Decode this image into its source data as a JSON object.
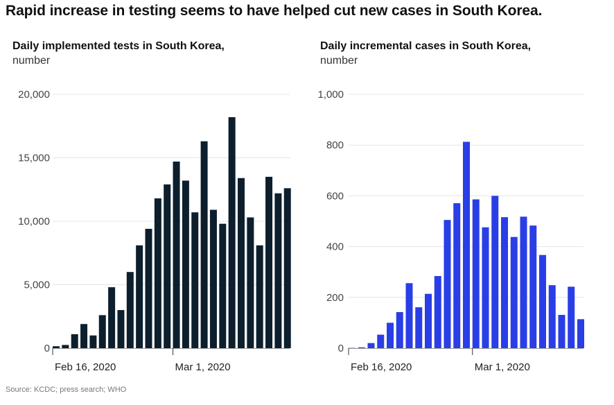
{
  "title": "Rapid increase in testing seems to have helped cut new cases in South Korea.",
  "source": "Source: KCDC; press search; WHO",
  "colors": {
    "tests": "#0d1f2d",
    "cases": "#2a3ee6",
    "grid": "#e4e4e4",
    "axis": "#333333"
  },
  "chart_data": [
    {
      "type": "bar",
      "title": "Daily implemented tests in South Korea,",
      "subtitle": "number",
      "ylim": [
        0,
        20000
      ],
      "yticks": [
        0,
        5000,
        10000,
        15000,
        20000
      ],
      "ytick_labels": [
        "0",
        "5,000",
        "10,000",
        "15,000",
        "20,000"
      ],
      "xtick_labels": [
        {
          "label": "Feb 16, 2020",
          "index": 0
        },
        {
          "label": "Mar 1, 2020",
          "index": 13
        }
      ],
      "grid": true,
      "values": [
        150,
        250,
        1100,
        1900,
        1000,
        2600,
        4800,
        3000,
        6000,
        8100,
        9400,
        11800,
        12900,
        14700,
        13200,
        10700,
        16300,
        10900,
        9800,
        18200,
        13400,
        10300,
        8100,
        13500,
        12200,
        12600
      ]
    },
    {
      "type": "bar",
      "title": "Daily incremental cases in South Korea,",
      "subtitle": "number",
      "ylim": [
        0,
        1000
      ],
      "yticks": [
        0,
        200,
        400,
        600,
        800,
        1000
      ],
      "ytick_labels": [
        "0",
        "200",
        "400",
        "600",
        "800",
        "1,000"
      ],
      "xtick_labels": [
        {
          "label": "Feb 16, 2020",
          "index": 0
        },
        {
          "label": "Mar 1, 2020",
          "index": 13
        }
      ],
      "grid": true,
      "values": [
        1,
        3,
        20,
        53,
        100,
        142,
        256,
        161,
        214,
        284,
        505,
        571,
        813,
        586,
        476,
        600,
        516,
        438,
        518,
        483,
        367,
        248,
        131,
        242,
        114
      ]
    }
  ]
}
